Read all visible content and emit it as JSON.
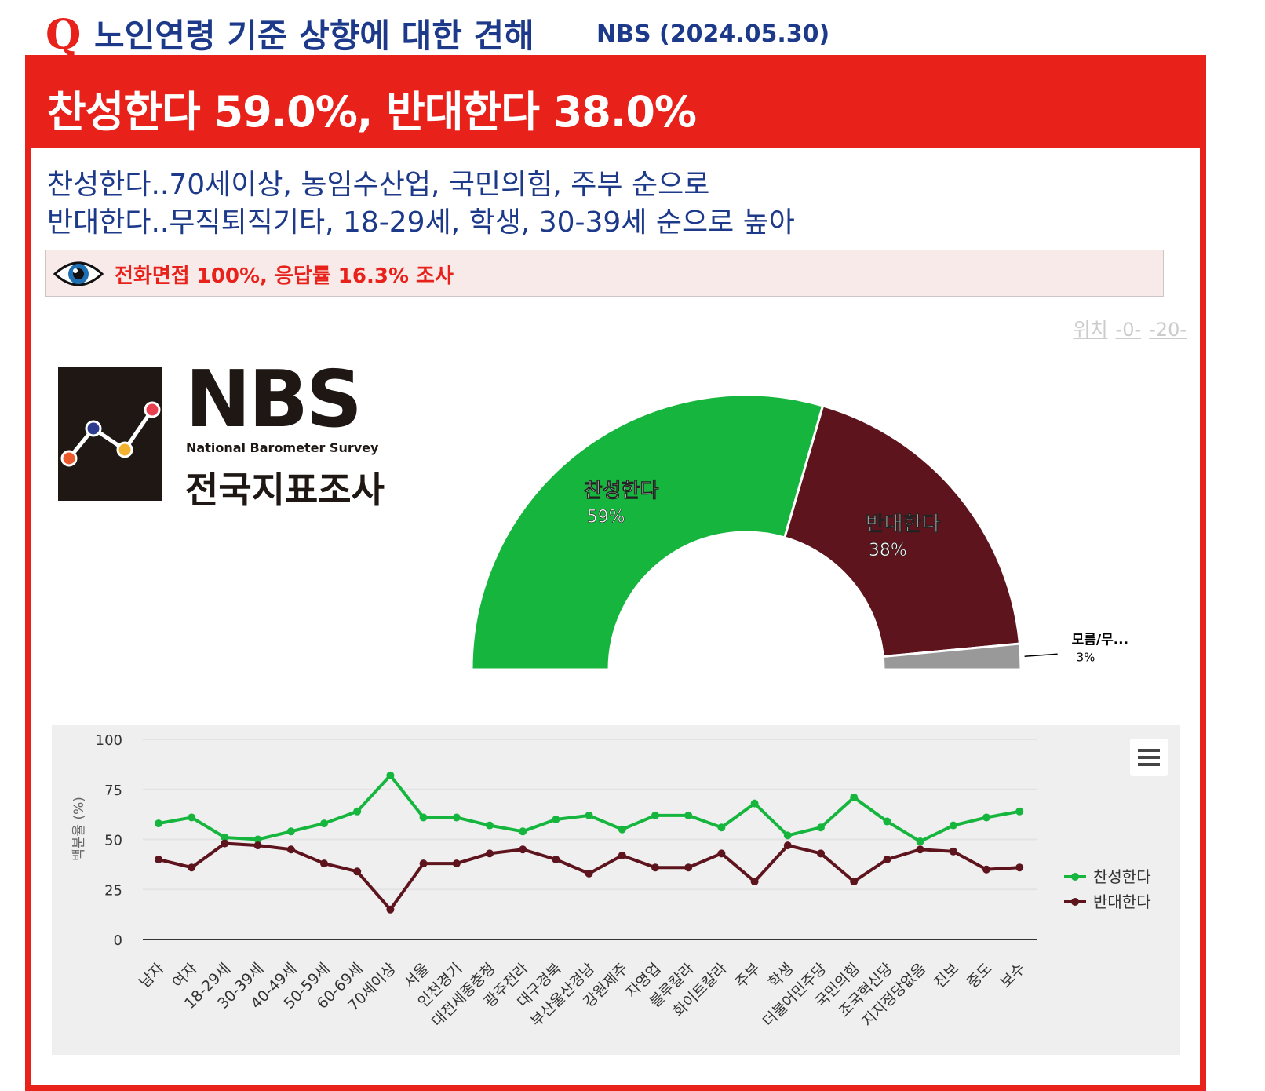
{
  "header": {
    "q": "Q",
    "title": "노인연령 기준 상향에 대한 견해",
    "source": "NBS (2024.05.30)"
  },
  "headline": "찬성한다 59.0%, 반대한다 38.0%",
  "summary": [
    "찬성한다..70세이상, 농임수산업, 국민의힘, 주부 순으로",
    "반대한다..무직퇴직기타, 18-29세, 학생, 30-39세 순으로 높아"
  ],
  "survey_info": "전화면접 100%, 응답률 16.3% 조사",
  "position_links": {
    "label": "위치",
    "a": "-0-",
    "b": "-20-"
  },
  "logo": {
    "name": "NBS",
    "en": "National Barometer Survey",
    "ko": "전국지표조사"
  },
  "colors": {
    "accent": "#e8211a",
    "title": "#1d3a8a",
    "agree": "#16b63e",
    "disagree": "#5e141d",
    "unknown": "#999999"
  },
  "chart_data": [
    {
      "type": "pie",
      "subtype": "semicircle-donut",
      "slices": [
        {
          "name": "찬성한다",
          "value": 59,
          "label": "59%"
        },
        {
          "name": "반대한다",
          "value": 38,
          "label": "38%"
        },
        {
          "name": "모름/무...",
          "value": 3,
          "label": "3%"
        }
      ]
    },
    {
      "type": "line",
      "ylabel": "백분율 (%)",
      "ylim": [
        0,
        100
      ],
      "yticks": [
        "0",
        "25",
        "50",
        "75",
        "100"
      ],
      "legend": "right",
      "categories": [
        "남자",
        "여자",
        "18-29세",
        "30-39세",
        "40-49세",
        "50-59세",
        "60-69세",
        "70세이상",
        "서울",
        "인천경기",
        "대전세종충청",
        "광주전라",
        "대구경북",
        "부산울산경남",
        "강원제주",
        "자영업",
        "블루칼라",
        "화이트칼라",
        "주부",
        "학생",
        "더불어민주당",
        "국민의힘",
        "조국혁신당",
        "지지정당없음",
        "진보",
        "중도",
        "보수"
      ],
      "series": [
        {
          "name": "찬성한다",
          "values": [
            58,
            61,
            51,
            50,
            54,
            58,
            64,
            82,
            61,
            61,
            57,
            54,
            60,
            62,
            55,
            62,
            62,
            56,
            68,
            52,
            56,
            71,
            59,
            49,
            57,
            61,
            64
          ]
        },
        {
          "name": "반대한다",
          "values": [
            40,
            36,
            48,
            47,
            45,
            38,
            34,
            15,
            38,
            38,
            43,
            45,
            40,
            33,
            42,
            36,
            36,
            43,
            29,
            47,
            43,
            29,
            40,
            45,
            44,
            35,
            36
          ]
        }
      ]
    }
  ]
}
